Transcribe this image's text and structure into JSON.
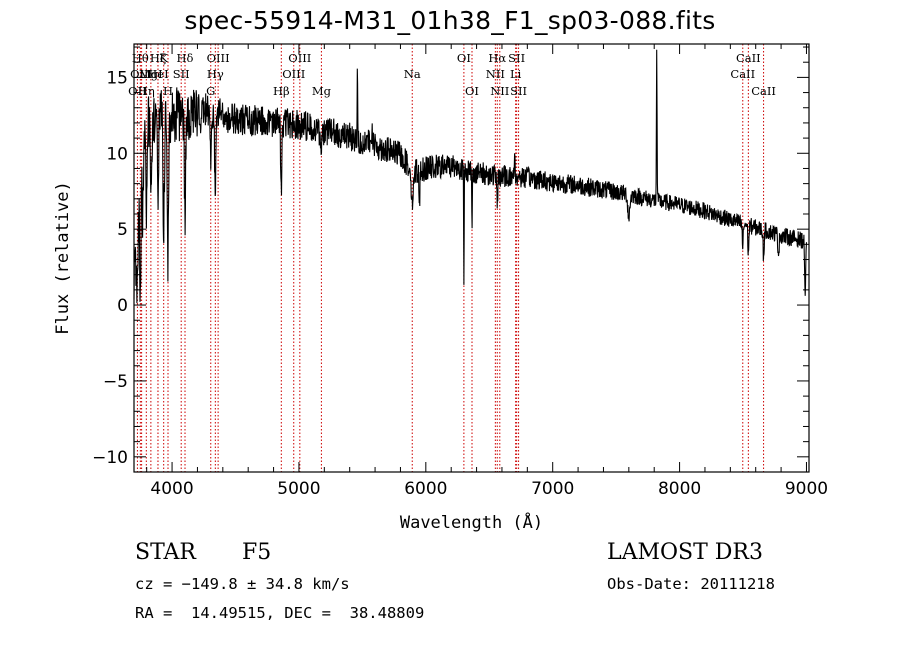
{
  "header": {
    "title": "spec-55914-M31_01h38_F1_sp03-088.fits"
  },
  "footer": {
    "object_class": "STAR",
    "subclass": "F5",
    "survey": "LAMOST DR3",
    "cz": "cz = −149.8 ± 34.8 km/s",
    "obs_date": "Obs-Date: 20111218",
    "coords": "RA =  14.49515, DEC =  38.48809"
  },
  "colors": {
    "line_marker": "#cc0000",
    "spectrum": "#000000",
    "axes": "#000000"
  },
  "chart_data": {
    "type": "line",
    "title": "spec-55914-M31_01h38_F1_sp03-088.fits",
    "xlabel": "Wavelength (Å)",
    "ylabel": "Flux (relative)",
    "xlim": [
      3700,
      9020
    ],
    "ylim": [
      -11,
      17.2
    ],
    "xticks": [
      4000,
      5000,
      6000,
      7000,
      8000,
      9000
    ],
    "xtick_labels": [
      "4000",
      "5000",
      "6000",
      "7000",
      "8000",
      "9000"
    ],
    "yticks": [
      -10,
      -5,
      0,
      5,
      10,
      15
    ],
    "ytick_labels": [
      "−10",
      "−5",
      "0",
      "5",
      "10",
      "15"
    ],
    "spectrum_anchors": [
      [
        3700,
        1.5
      ],
      [
        3730,
        4
      ],
      [
        3760,
        9
      ],
      [
        3790,
        11.5
      ],
      [
        3830,
        12.2
      ],
      [
        3900,
        12.8
      ],
      [
        3970,
        12.3
      ],
      [
        4050,
        12.6
      ],
      [
        4150,
        12.6
      ],
      [
        4250,
        12.9
      ],
      [
        4350,
        12.6
      ],
      [
        4500,
        12.3
      ],
      [
        4700,
        12.1
      ],
      [
        4900,
        12
      ],
      [
        5000,
        11.9
      ],
      [
        5200,
        11.5
      ],
      [
        5400,
        11.1
      ],
      [
        5600,
        10.5
      ],
      [
        5800,
        9.9
      ],
      [
        5900,
        8.8
      ],
      [
        6000,
        9
      ],
      [
        6200,
        9.2
      ],
      [
        6400,
        8.7
      ],
      [
        6600,
        8.5
      ],
      [
        6800,
        8.4
      ],
      [
        7000,
        8.1
      ],
      [
        7200,
        7.9
      ],
      [
        7400,
        7.6
      ],
      [
        7600,
        7.3
      ],
      [
        7800,
        6.9
      ],
      [
        8000,
        6.6
      ],
      [
        8200,
        6.2
      ],
      [
        8400,
        5.6
      ],
      [
        8600,
        5.1
      ],
      [
        8800,
        4.6
      ],
      [
        9000,
        4.2
      ]
    ],
    "spectrum_features": [
      {
        "wl": 3720,
        "depth": -1.5,
        "width": 6
      },
      {
        "wl": 3750,
        "depth": -6,
        "width": 4
      },
      {
        "wl": 3770,
        "depth": -4,
        "width": 4
      },
      {
        "wl": 3798,
        "depth": -5,
        "width": 4
      },
      {
        "wl": 3835,
        "depth": -4,
        "width": 5
      },
      {
        "wl": 3889,
        "depth": -5,
        "width": 5
      },
      {
        "wl": 3934,
        "depth": -8,
        "width": 5
      },
      {
        "wl": 3968,
        "depth": -9,
        "width": 5
      },
      {
        "wl": 4101,
        "depth": -6.5,
        "width": 5
      },
      {
        "wl": 4227,
        "depth": -2,
        "width": 4
      },
      {
        "wl": 4305,
        "depth": -3,
        "width": 6
      },
      {
        "wl": 4340,
        "depth": -5,
        "width": 5
      },
      {
        "wl": 4861,
        "depth": -4,
        "width": 5
      },
      {
        "wl": 5173,
        "depth": -1.5,
        "width": 8
      },
      {
        "wl": 5461,
        "depth": 5.5,
        "width": 2
      },
      {
        "wl": 5577,
        "depth": 2,
        "width": 2
      },
      {
        "wl": 5893,
        "depth": -2.5,
        "width": 6
      },
      {
        "wl": 5950,
        "depth": -2,
        "width": 4
      },
      {
        "wl": 6300,
        "depth": -8.3,
        "width": 2
      },
      {
        "wl": 6364,
        "depth": -4,
        "width": 2
      },
      {
        "wl": 6563,
        "depth": -2,
        "width": 4
      },
      {
        "wl": 6700,
        "depth": 1.5,
        "width": 3
      },
      {
        "wl": 7600,
        "depth": -1.5,
        "width": 8
      },
      {
        "wl": 7820,
        "depth": 9.5,
        "width": 2.5
      },
      {
        "wl": 8498,
        "depth": -1.5,
        "width": 4
      },
      {
        "wl": 8542,
        "depth": -1.8,
        "width": 4
      },
      {
        "wl": 8662,
        "depth": -1.8,
        "width": 4
      },
      {
        "wl": 8780,
        "depth": -1.2,
        "width": 5
      },
      {
        "wl": 8990,
        "depth": -3.5,
        "width": 4
      }
    ],
    "noise": {
      "amplitude_blue": 1.2,
      "amplitude_red": 0.55,
      "step_angstrom": 2.5,
      "seed": 55914
    },
    "line_markers": [
      {
        "wl": 3727,
        "label": "OII",
        "row": 3
      },
      {
        "wl": 3750,
        "label": "Hθ",
        "row": 1
      },
      {
        "wl": 3760,
        "label": "OIII",
        "row": 2
      },
      {
        "wl": 3797,
        "label": "Hη",
        "row": 3
      },
      {
        "wl": 3833,
        "label": "MgI",
        "row": 2
      },
      {
        "wl": 3889,
        "label": "HeI",
        "row": 2
      },
      {
        "wl": 3889,
        "label": "Hζ",
        "row": 1
      },
      {
        "wl": 3934,
        "label": "K",
        "row": 1
      },
      {
        "wl": 3968,
        "label": "H",
        "row": 3
      },
      {
        "wl": 4072,
        "label": "SII",
        "row": 2
      },
      {
        "wl": 4102,
        "label": "Hδ",
        "row": 1
      },
      {
        "wl": 4305,
        "label": "G",
        "row": 3
      },
      {
        "wl": 4341,
        "label": "Hγ",
        "row": 2
      },
      {
        "wl": 4363,
        "label": "OIII",
        "row": 1
      },
      {
        "wl": 4861,
        "label": "Hβ",
        "row": 3
      },
      {
        "wl": 4959,
        "label": "OIII",
        "row": 2
      },
      {
        "wl": 5007,
        "label": "OIII",
        "row": 1
      },
      {
        "wl": 5177,
        "label": "Mg",
        "row": 3
      },
      {
        "wl": 5893,
        "label": "Na",
        "row": 2
      },
      {
        "wl": 6300,
        "label": "OI",
        "row": 1
      },
      {
        "wl": 6364,
        "label": "OI",
        "row": 3
      },
      {
        "wl": 6548,
        "label": "NII",
        "row": 2
      },
      {
        "wl": 6563,
        "label": "Hα",
        "row": 1
      },
      {
        "wl": 6583,
        "label": "NII",
        "row": 3
      },
      {
        "wl": 6708,
        "label": "Li",
        "row": 2
      },
      {
        "wl": 6716,
        "label": "SII",
        "row": 1
      },
      {
        "wl": 6731,
        "label": "SII",
        "row": 3
      },
      {
        "wl": 8498,
        "label": "CaII",
        "row": 2
      },
      {
        "wl": 8542,
        "label": "CaII",
        "row": 1
      },
      {
        "wl": 8662,
        "label": "CaII",
        "row": 3
      }
    ]
  }
}
